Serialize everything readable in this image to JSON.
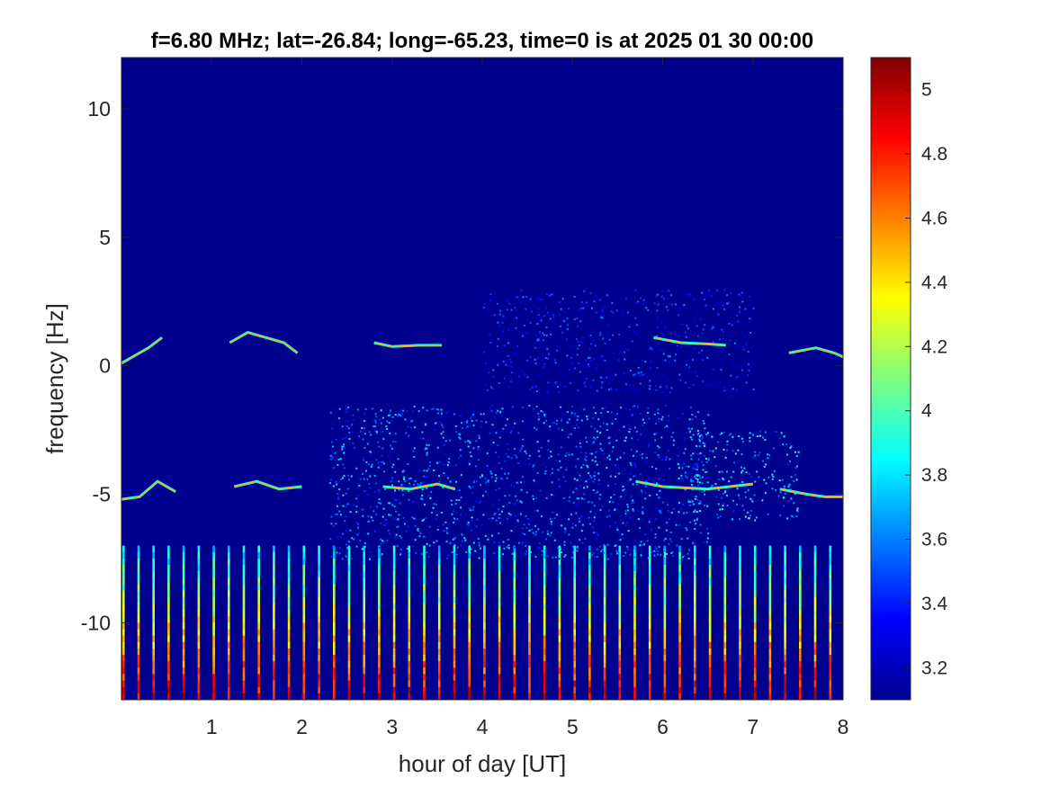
{
  "chart_data": {
    "type": "heatmap",
    "title": "f=6.80 MHz;  lat=-26.84; long=-65.23, time=0 is at 2025 01 30 00:00",
    "xlabel": "hour of day [UT]",
    "ylabel": "frequency [Hz]",
    "xlim": [
      0,
      8
    ],
    "ylim": [
      -13,
      12
    ],
    "xticks": [
      1,
      2,
      3,
      4,
      5,
      6,
      7,
      8
    ],
    "xtick_labels": [
      "1",
      "2",
      "3",
      "4",
      "5",
      "6",
      "7",
      "8"
    ],
    "yticks": [
      10,
      5,
      0,
      -5,
      -10
    ],
    "ytick_labels": [
      "10",
      "5",
      "0",
      "-5",
      "-10"
    ],
    "colormap": "jet",
    "background_color": "#00008f",
    "color_range": [
      3.1,
      5.1
    ],
    "colorbar_ticks": [
      5,
      4.8,
      4.6,
      4.4,
      4.2,
      4,
      3.8,
      3.6,
      3.4,
      3.2
    ],
    "colorbar_tick_labels": [
      "5",
      "4.8",
      "4.6",
      "4.4",
      "4.2",
      "4",
      "3.8",
      "3.6",
      "3.4",
      "3.2"
    ],
    "traces": [
      {
        "name": "upper-1",
        "points": [
          [
            0.0,
            0.1
          ],
          [
            0.15,
            0.4
          ],
          [
            0.3,
            0.7
          ],
          [
            0.45,
            1.1
          ]
        ]
      },
      {
        "name": "upper-2",
        "points": [
          [
            1.2,
            0.9
          ],
          [
            1.4,
            1.3
          ],
          [
            1.6,
            1.1
          ],
          [
            1.8,
            0.9
          ],
          [
            1.95,
            0.5
          ]
        ]
      },
      {
        "name": "upper-3",
        "points": [
          [
            2.8,
            0.9
          ],
          [
            3.0,
            0.75
          ],
          [
            3.3,
            0.8
          ],
          [
            3.55,
            0.8
          ]
        ]
      },
      {
        "name": "upper-4",
        "points": [
          [
            5.9,
            1.1
          ],
          [
            6.2,
            0.9
          ],
          [
            6.5,
            0.85
          ],
          [
            6.7,
            0.8
          ]
        ]
      },
      {
        "name": "upper-5",
        "points": [
          [
            7.4,
            0.5
          ],
          [
            7.7,
            0.7
          ],
          [
            7.9,
            0.5
          ],
          [
            8.0,
            0.35
          ]
        ]
      },
      {
        "name": "lower-1",
        "points": [
          [
            0.0,
            -5.2
          ],
          [
            0.2,
            -5.1
          ],
          [
            0.4,
            -4.5
          ],
          [
            0.6,
            -4.9
          ]
        ]
      },
      {
        "name": "lower-2",
        "points": [
          [
            1.25,
            -4.7
          ],
          [
            1.5,
            -4.5
          ],
          [
            1.75,
            -4.8
          ],
          [
            2.0,
            -4.7
          ]
        ]
      },
      {
        "name": "lower-3",
        "points": [
          [
            2.9,
            -4.7
          ],
          [
            3.2,
            -4.8
          ],
          [
            3.5,
            -4.6
          ],
          [
            3.7,
            -4.8
          ]
        ]
      },
      {
        "name": "lower-4",
        "points": [
          [
            5.7,
            -4.5
          ],
          [
            6.0,
            -4.7
          ],
          [
            6.5,
            -4.8
          ],
          [
            7.0,
            -4.6
          ]
        ]
      },
      {
        "name": "lower-5",
        "points": [
          [
            7.3,
            -4.8
          ],
          [
            7.6,
            -5.0
          ],
          [
            7.8,
            -5.1
          ],
          [
            8.0,
            -5.1
          ]
        ]
      }
    ],
    "scatter_clouds": [
      {
        "name": "mid-band",
        "x_range": [
          2.3,
          6.5
        ],
        "y_range": [
          -7.5,
          -1.5
        ],
        "intensity": 3.5
      },
      {
        "name": "right-band",
        "x_range": [
          6.3,
          7.5
        ],
        "y_range": [
          -6.0,
          -2.5
        ],
        "intensity": 3.6
      },
      {
        "name": "upper-diffuse",
        "x_range": [
          4.0,
          7.0
        ],
        "y_range": [
          -1.0,
          3.0
        ],
        "intensity": 3.3
      }
    ],
    "periodic_stripes": {
      "spacing_hours": 0.1667,
      "y_range": [
        -13,
        -7
      ],
      "intensity_top": 3.8,
      "intensity_bottom": 4.9
    }
  }
}
